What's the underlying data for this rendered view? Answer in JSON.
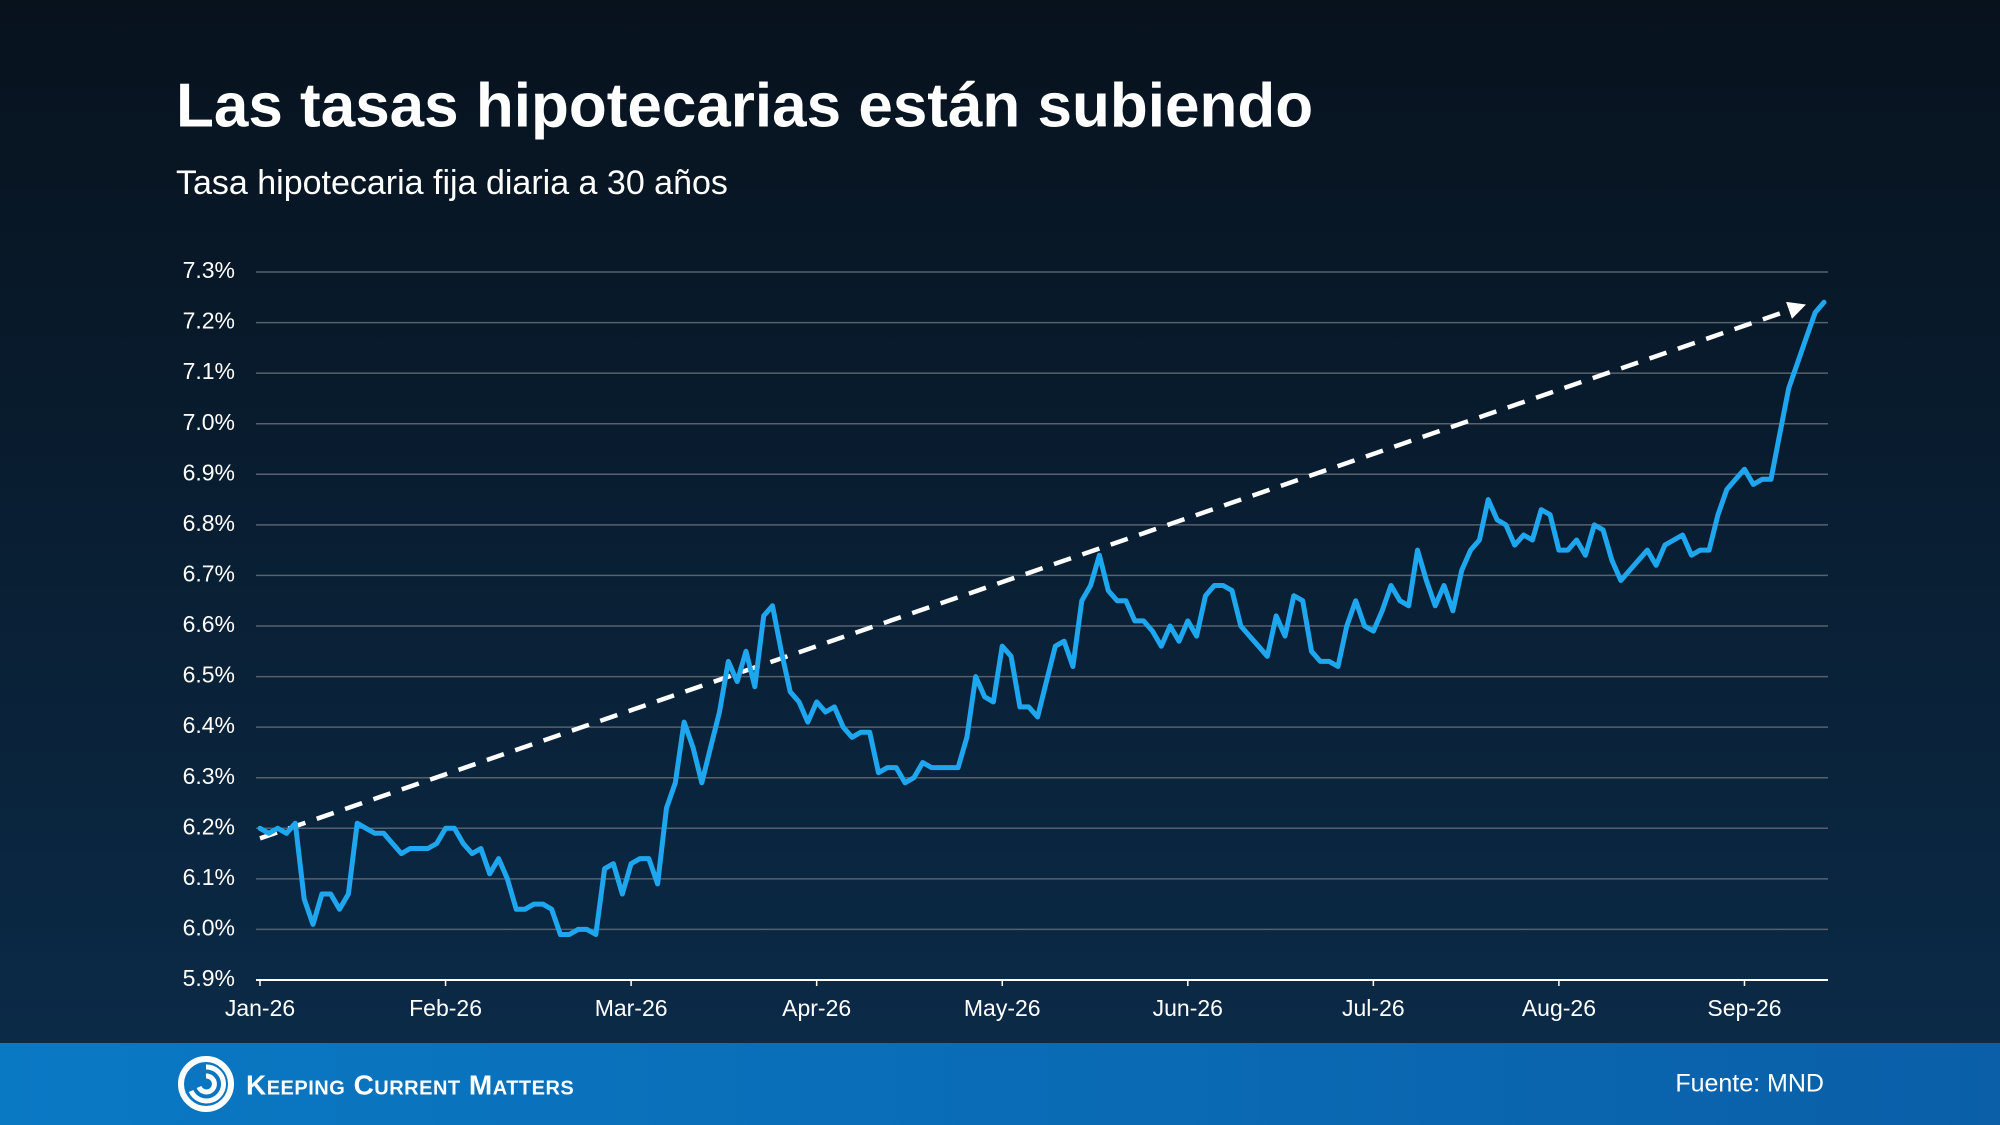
{
  "chart_data": {
    "type": "line",
    "title": "Las tasas hipotecarias están subiendo",
    "subtitle": "Tasa hipotecaria fija diaria a 30 años",
    "color": "#1ea7ef",
    "values": [
      6.2,
      6.19,
      6.2,
      6.19,
      6.21,
      6.06,
      6.01,
      6.07,
      6.07,
      6.04,
      6.07,
      6.21,
      6.2,
      6.19,
      6.19,
      6.17,
      6.15,
      6.16,
      6.16,
      6.16,
      6.17,
      6.2,
      6.2,
      6.17,
      6.15,
      6.16,
      6.11,
      6.14,
      6.1,
      6.04,
      6.04,
      6.05,
      6.05,
      6.04,
      5.99,
      5.99,
      6.0,
      6.0,
      5.99,
      6.12,
      6.13,
      6.07,
      6.13,
      6.14,
      6.14,
      6.09,
      6.24,
      6.29,
      6.41,
      6.36,
      6.29,
      6.36,
      6.43,
      6.53,
      6.49,
      6.55,
      6.48,
      6.62,
      6.64,
      6.55,
      6.47,
      6.45,
      6.41,
      6.45,
      6.43,
      6.44,
      6.4,
      6.38,
      6.39,
      6.39,
      6.31,
      6.32,
      6.32,
      6.29,
      6.3,
      6.33,
      6.32,
      6.32,
      6.32,
      6.32,
      6.38,
      6.5,
      6.46,
      6.45,
      6.56,
      6.54,
      6.44,
      6.44,
      6.42,
      6.49,
      6.56,
      6.57,
      6.52,
      6.65,
      6.68,
      6.74,
      6.67,
      6.65,
      6.65,
      6.61,
      6.61,
      6.59,
      6.56,
      6.6,
      6.57,
      6.61,
      6.58,
      6.66,
      6.68,
      6.68,
      6.67,
      6.6,
      6.58,
      6.56,
      6.54,
      6.62,
      6.58,
      6.66,
      6.65,
      6.55,
      6.53,
      6.53,
      6.52,
      6.6,
      6.65,
      6.6,
      6.59,
      6.63,
      6.68,
      6.65,
      6.64,
      6.75,
      6.69,
      6.64,
      6.68,
      6.63,
      6.71,
      6.75,
      6.77,
      6.85,
      6.81,
      6.8,
      6.76,
      6.78,
      6.77,
      6.83,
      6.82,
      6.75,
      6.75,
      6.77,
      6.74,
      6.8,
      6.79,
      6.73,
      6.69,
      6.71,
      6.73,
      6.75,
      6.72,
      6.76,
      6.77,
      6.78,
      6.74,
      6.75,
      6.75,
      6.82,
      6.87,
      6.89,
      6.91,
      6.88,
      6.89,
      6.89,
      6.98,
      7.07,
      7.12,
      7.17,
      7.22,
      7.24
    ],
    "trend": {
      "x": [
        0,
        174
      ],
      "values": [
        6.18,
        7.23
      ],
      "color": "#ffffff"
    },
    "xlim": [
      0,
      177
    ],
    "xticks": [
      {
        "value": 0,
        "label": "Jan-26"
      },
      {
        "value": 21,
        "label": "Feb-26"
      },
      {
        "value": 42,
        "label": "Mar-26"
      },
      {
        "value": 63,
        "label": "Apr-26"
      },
      {
        "value": 84,
        "label": "May-26"
      },
      {
        "value": 105,
        "label": "Jun-26"
      },
      {
        "value": 126,
        "label": "Jul-26"
      },
      {
        "value": 147,
        "label": "Aug-26"
      },
      {
        "value": 168,
        "label": "Sep-26"
      }
    ],
    "ylim": [
      5.9,
      7.3
    ],
    "yticks": [
      {
        "value": 5.9,
        "label": "5.9%"
      },
      {
        "value": 6.0,
        "label": "6.0%"
      },
      {
        "value": 6.1,
        "label": "6.1%"
      },
      {
        "value": 6.2,
        "label": "6.2%"
      },
      {
        "value": 6.3,
        "label": "6.3%"
      },
      {
        "value": 6.4,
        "label": "6.4%"
      },
      {
        "value": 6.5,
        "label": "6.5%"
      },
      {
        "value": 6.6,
        "label": "6.6%"
      },
      {
        "value": 6.7,
        "label": "6.7%"
      },
      {
        "value": 6.8,
        "label": "6.8%"
      },
      {
        "value": 6.9,
        "label": "6.9%"
      },
      {
        "value": 7.0,
        "label": "7.0%"
      },
      {
        "value": 7.1,
        "label": "7.1%"
      },
      {
        "value": 7.2,
        "label": "7.2%"
      },
      {
        "value": 7.3,
        "label": "7.3%"
      }
    ],
    "grid": true
  },
  "footer": {
    "brand": "Keeping Current Matters",
    "source": "Fuente: MND"
  }
}
